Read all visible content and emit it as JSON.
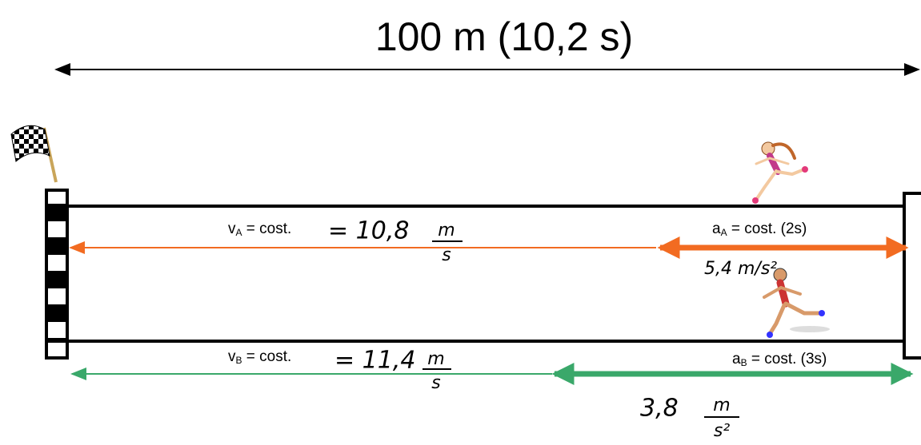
{
  "title": "100 m   (10,2 s)",
  "runner_a": {
    "velocity": {
      "symbol": "v",
      "sub": "A",
      "rest": " = cost.",
      "hand": "= 10,8",
      "num": "m",
      "den": "s"
    },
    "acceleration": {
      "symbol": "a",
      "sub": "A",
      "rest": " = cost. (2s)",
      "hand": "5,4 m/s²"
    }
  },
  "runner_b": {
    "velocity": {
      "symbol": "v",
      "sub": "B",
      "rest": " = cost.",
      "hand": "= 11,4",
      "num": "m",
      "den": "s"
    },
    "acceleration": {
      "symbol": "a",
      "sub": "B",
      "rest": " = cost. (3s)",
      "hand": "3,8",
      "num": "m",
      "den": "s²"
    }
  }
}
